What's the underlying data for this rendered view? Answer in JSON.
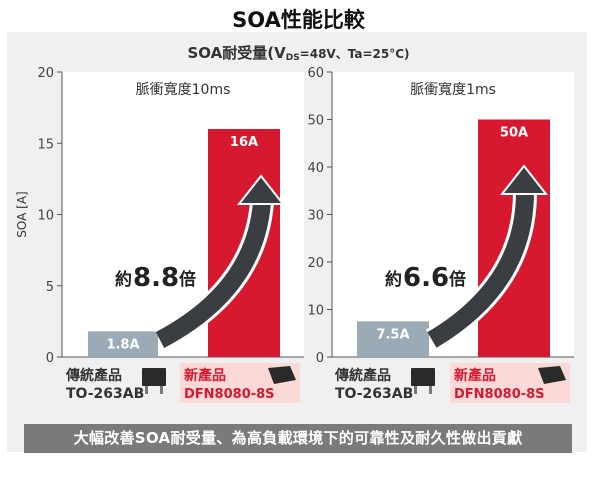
{
  "title": "SOA性能比較",
  "subtitle": {
    "prefix": "SOA耐受量(V",
    "subscript": "DS",
    "suffix": "=48V、Ta=25°C)"
  },
  "footer": "大幅改善SOA耐受量、為高負載環境下的可靠性及耐久性做出貢獻",
  "colors": {
    "conventional": "#9aabb7",
    "new": "#d7192f",
    "arrow": "#3a3e43",
    "new_label_bg": "#fbd9d7"
  },
  "chart_data": [
    {
      "type": "bar",
      "title": "脈衝寬度10ms",
      "ylabel": "SOA [A]",
      "ylim": [
        0,
        20
      ],
      "yticks": [
        0,
        5,
        10,
        15,
        20
      ],
      "categories": [
        "傳統產品 TO-263AB",
        "新產品 DFN8080-8S"
      ],
      "values": [
        1.8,
        16
      ],
      "value_labels": [
        "1.8A",
        "16A"
      ],
      "multiplier_prefix": "約",
      "multiplier_value": "8.8",
      "multiplier_suffix": "倍",
      "grid": false
    },
    {
      "type": "bar",
      "title": "脈衝寬度1ms",
      "ylabel": "",
      "ylim": [
        0,
        60
      ],
      "yticks": [
        0,
        10,
        20,
        30,
        40,
        50,
        60
      ],
      "categories": [
        "傳統產品 TO-263AB",
        "新產品 DFN8080-8S"
      ],
      "values": [
        7.5,
        50
      ],
      "value_labels": [
        "7.5A",
        "50A"
      ],
      "multiplier_prefix": "約",
      "multiplier_value": "6.6",
      "multiplier_suffix": "倍",
      "grid": false
    }
  ],
  "products": {
    "conventional": {
      "name": "傳統產品",
      "package": "TO-263AB",
      "icon": "to263-package-icon"
    },
    "new": {
      "name": "新產品",
      "package": "DFN8080-8S",
      "icon": "dfn-package-icon"
    }
  }
}
